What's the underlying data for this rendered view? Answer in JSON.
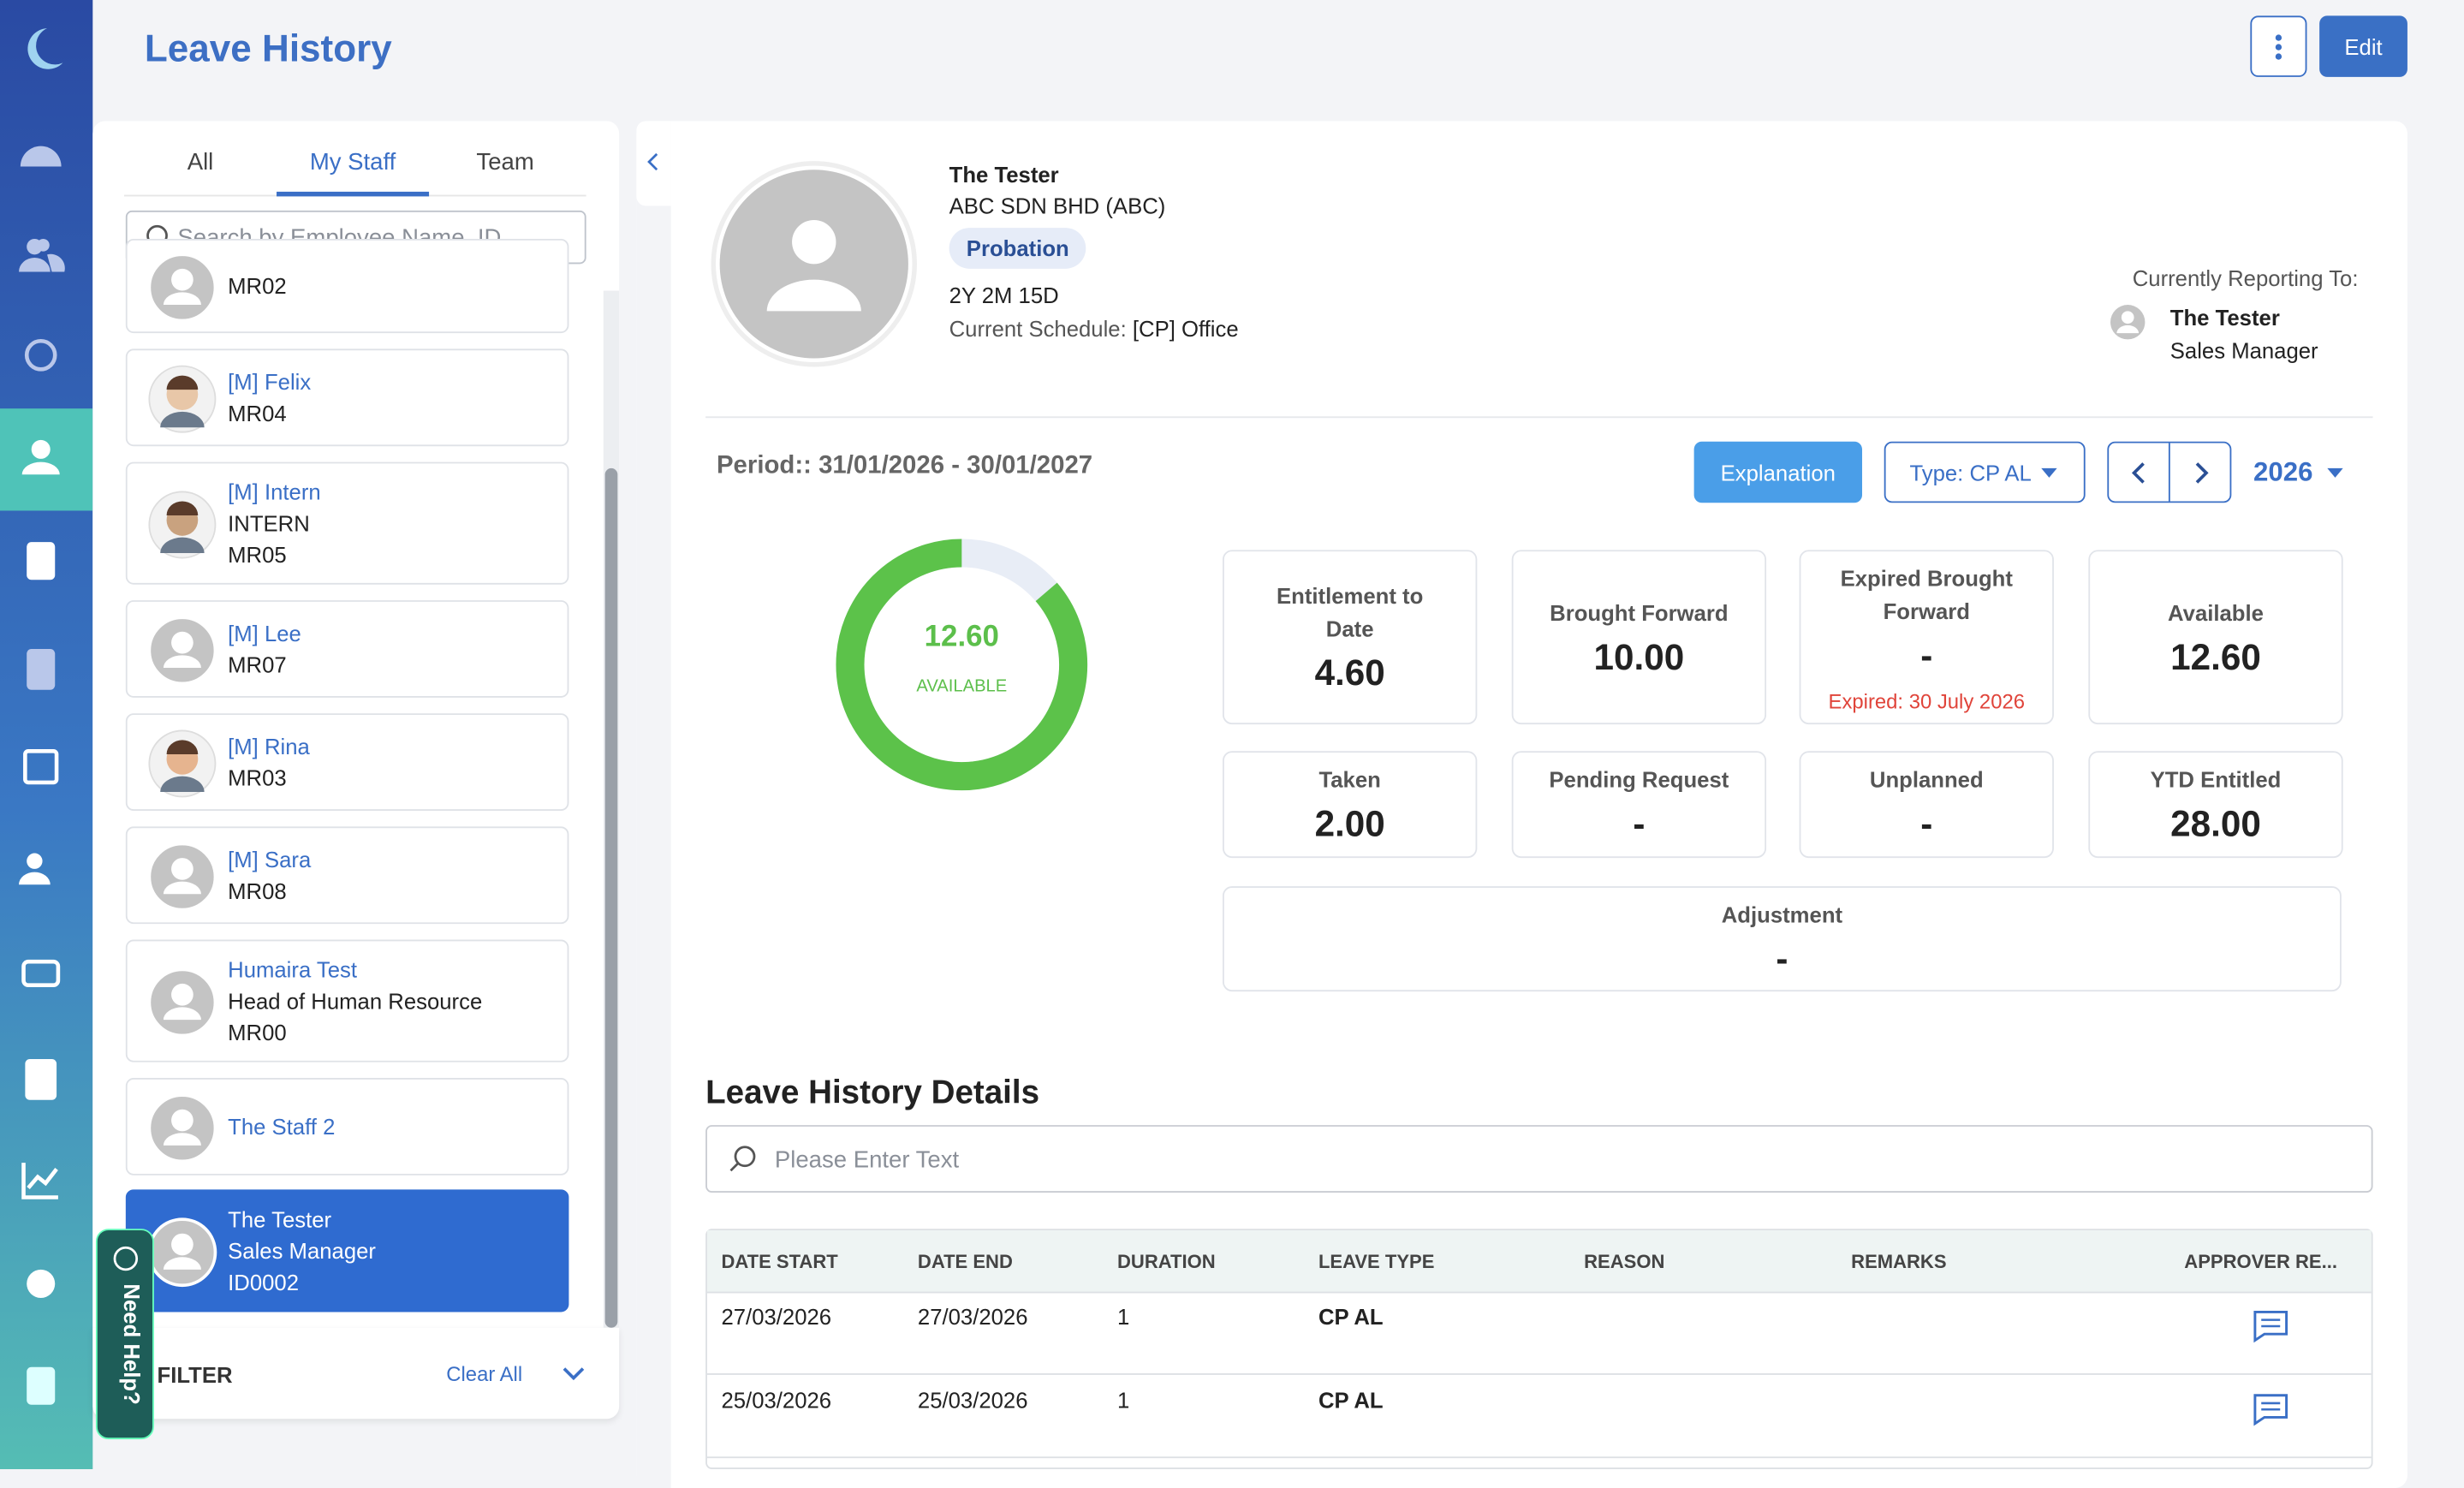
{
  "header": {
    "title": "Leave History",
    "edit": "Edit"
  },
  "tabs": [
    "All",
    "My Staff",
    "Team"
  ],
  "staff_search_placeholder": "Search by Employee Name, ID",
  "staff": [
    {
      "lines": [
        "MR02"
      ]
    },
    {
      "name": "[M] Felix",
      "lines": [
        "MR04"
      ]
    },
    {
      "name": "[M] Intern",
      "lines": [
        "INTERN",
        "MR05"
      ]
    },
    {
      "name": "[M] Lee",
      "lines": [
        "MR07"
      ]
    },
    {
      "name": "[M] Rina",
      "lines": [
        "MR03"
      ]
    },
    {
      "name": "[M] Sara",
      "lines": [
        "MR08"
      ]
    },
    {
      "name": "Humaira Test",
      "lines": [
        "Head of Human Resource",
        "MR00"
      ]
    },
    {
      "name": "The Staff 2"
    },
    {
      "name": "The Tester",
      "lines": [
        "Sales Manager",
        "ID0002"
      ]
    }
  ],
  "filter": {
    "label": "FILTER",
    "clear": "Clear All"
  },
  "help": "Need Help?",
  "profile": {
    "name": "The Tester",
    "company": "ABC SDN BHD (ABC)",
    "status": "Probation",
    "tenure": "2Y 2M 15D",
    "schedule_label": "Current Schedule:",
    "schedule": "[CP] Office",
    "reporting_label": "Currently Reporting To:",
    "manager_name": "The Tester",
    "manager_title": "Sales Manager"
  },
  "period": "Period:: 31/01/2026 - 30/01/2027",
  "controls": {
    "explanation": "Explanation",
    "type": "Type: CP AL",
    "year": "2026"
  },
  "donut": {
    "value": "12.60",
    "label": "AVAILABLE"
  },
  "stats": [
    {
      "label": "Entitlement to Date",
      "value": "4.60"
    },
    {
      "label": "Brought Forward",
      "value": "10.00"
    },
    {
      "label": "Expired Brought Forward",
      "value": "-",
      "note": "Expired: 30 July 2026"
    },
    {
      "label": "Available",
      "value": "12.60"
    },
    {
      "label": "Taken",
      "value": "2.00"
    },
    {
      "label": "Pending Request",
      "value": "-"
    },
    {
      "label": "Unplanned",
      "value": "-"
    },
    {
      "label": "YTD Entitled",
      "value": "28.00"
    },
    {
      "label": "Adjustment",
      "value": "-"
    }
  ],
  "details": {
    "title": "Leave History Details",
    "search_placeholder": "Please Enter Text",
    "columns": [
      "DATE START",
      "DATE END",
      "DURATION",
      "LEAVE TYPE",
      "REASON",
      "REMARKS",
      "APPROVER RE..."
    ],
    "rows": [
      {
        "start": "27/03/2026",
        "end": "27/03/2026",
        "duration": "1",
        "type": "CP AL"
      },
      {
        "start": "25/03/2026",
        "end": "25/03/2026",
        "duration": "1",
        "type": "CP AL"
      }
    ]
  }
}
